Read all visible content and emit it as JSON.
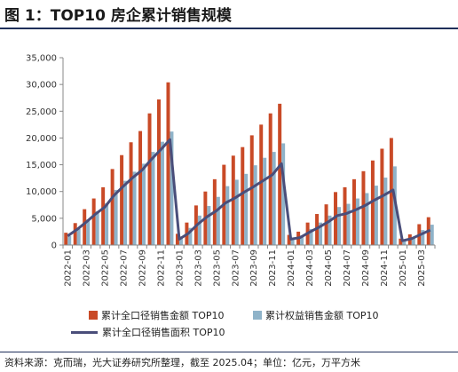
{
  "header": {
    "title": "图 1：TOP10 房企累计销售规模"
  },
  "footer": {
    "source": "资料来源：克而瑞，光大证券研究所整理，截至 2025.04；单位：亿元，万平方米"
  },
  "colors": {
    "bar_full": "#c94a27",
    "bar_equity": "#8fb3c9",
    "line": "#4a4e7a",
    "axis": "#888888"
  },
  "chart_data": {
    "type": "bar",
    "title": "",
    "xlabel": "",
    "ylabel": "",
    "ylim": [
      0,
      35000
    ],
    "yticks": [
      "0",
      "5,000",
      "10,000",
      "15,000",
      "20,000",
      "25,000",
      "30,000",
      "35,000"
    ],
    "grid": false,
    "legend_position": "bottom",
    "categories": [
      "2022-01",
      "2022-02",
      "2022-03",
      "2022-04",
      "2022-05",
      "2022-06",
      "2022-07",
      "2022-08",
      "2022-09",
      "2022-10",
      "2022-11",
      "2022-12",
      "2023-01",
      "2023-02",
      "2023-03",
      "2023-04",
      "2023-05",
      "2023-06",
      "2023-07",
      "2023-08",
      "2023-09",
      "2023-10",
      "2023-11",
      "2023-12",
      "2024-01",
      "2024-02",
      "2024-03",
      "2024-04",
      "2024-05",
      "2024-06",
      "2024-07",
      "2024-08",
      "2024-09",
      "2024-10",
      "2024-11",
      "2024-12",
      "2025-01",
      "2025-02",
      "2025-03",
      "2025-04"
    ],
    "tick_labels": [
      "2022-01",
      "2022-03",
      "2022-05",
      "2022-07",
      "2022-09",
      "2022-11",
      "2023-01",
      "2023-03",
      "2023-05",
      "2023-07",
      "2023-09",
      "2023-11",
      "2024-01",
      "2024-03",
      "2024-05",
      "2024-07",
      "2024-09",
      "2024-11",
      "2025-01",
      "2025-03"
    ],
    "series": [
      {
        "name": "累计全口径销售金额 TOP10",
        "kind": "bar",
        "values": [
          2300,
          4100,
          6700,
          8700,
          10800,
          14200,
          16800,
          19200,
          21300,
          24600,
          27200,
          30400,
          2100,
          4200,
          7400,
          10000,
          12300,
          15000,
          16700,
          18300,
          20500,
          22500,
          24600,
          26400,
          1900,
          2500,
          4200,
          5800,
          7600,
          9900,
          10800,
          12300,
          13800,
          15800,
          18000,
          20000,
          1200,
          2000,
          3900,
          5200
        ]
      },
      {
        "name": "累计权益销售金额 TOP10",
        "kind": "bar",
        "values": [
          1700,
          3000,
          4800,
          6300,
          7800,
          10300,
          12000,
          13700,
          15200,
          17400,
          19300,
          21200,
          1600,
          3200,
          5500,
          7300,
          9000,
          11000,
          12200,
          13300,
          14900,
          16300,
          17400,
          19000,
          1400,
          1800,
          3000,
          4200,
          5500,
          7100,
          7700,
          8700,
          9700,
          11100,
          12600,
          14700,
          900,
          1400,
          2800,
          3800
        ]
      },
      {
        "name": "累计全口径销售面积 TOP10",
        "kind": "line",
        "values": [
          1700,
          2900,
          4300,
          5800,
          7100,
          9300,
          11000,
          12600,
          14000,
          16000,
          17800,
          19700,
          1100,
          2200,
          3900,
          5300,
          6400,
          7900,
          8800,
          9900,
          10900,
          12000,
          13100,
          15200,
          1100,
          1400,
          2400,
          3300,
          4300,
          5500,
          5900,
          6600,
          7400,
          8400,
          9300,
          10300,
          800,
          1200,
          2000,
          2800
        ]
      }
    ]
  }
}
